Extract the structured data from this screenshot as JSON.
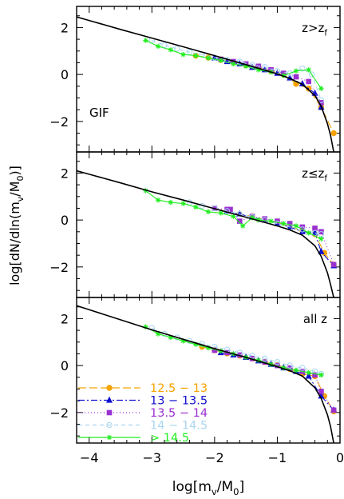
{
  "xlabel": "log[m_v/M_0]",
  "ylabel": "log[dN/dln(m_v/M_0)]",
  "colors": {
    "axis": "#000000",
    "model": "#000000",
    "s1": "#f5a300",
    "s2": "#1010d0",
    "s3": "#9a30d0",
    "s4": "#a9d6f0",
    "s5": "#22ee22"
  },
  "legend": [
    {
      "label": "12.5 − 13",
      "color": "#f5a300",
      "marker": "circle",
      "dash": "10,4"
    },
    {
      "label": "13 − 13.5",
      "color": "#1010d0",
      "marker": "triangle",
      "dash": "8,3,2,3"
    },
    {
      "label": "13.5 − 14",
      "color": "#9a30d0",
      "marker": "square",
      "dash": "1,3"
    },
    {
      "label": "14 − 14.5",
      "color": "#a9d6f0",
      "marker": "circle-open",
      "dash": "5,4"
    },
    {
      "label": "> 14.5",
      "color": "#22ee22",
      "marker": "star",
      "dash": ""
    }
  ],
  "chart_data": [
    {
      "type": "line",
      "panel_label": "z>z_f",
      "extra_label": "GIF",
      "xlim": [
        -4.2,
        0
      ],
      "ylim": [
        -3.3,
        2.9
      ],
      "xticks": [
        -4,
        -3,
        -2,
        -1,
        0
      ],
      "yticks": [
        -2,
        0,
        2
      ],
      "model": {
        "x": [
          -4.2,
          -4.0,
          -3.5,
          -3.0,
          -2.5,
          -2.0,
          -1.5,
          -1.0,
          -0.8,
          -0.6,
          -0.4,
          -0.3,
          -0.2,
          -0.15,
          -0.1,
          -0.07
        ],
        "y": [
          2.45,
          2.3,
          1.92,
          1.55,
          1.18,
          0.8,
          0.42,
          0.02,
          -0.17,
          -0.42,
          -0.9,
          -1.35,
          -2.1,
          -2.6,
          -3.3,
          -3.6
        ]
      },
      "series": [
        {
          "name": "12.5 − 13",
          "x": [
            -2.3,
            -2.1,
            -1.9,
            -1.7,
            -1.5,
            -1.3,
            -1.1,
            -0.9,
            -0.7,
            -0.5,
            -0.3,
            -0.1
          ],
          "y": [
            0.8,
            0.72,
            0.62,
            0.52,
            0.4,
            0.3,
            0.15,
            0.0,
            -0.4,
            -0.6,
            -1.4,
            -2.5
          ]
        },
        {
          "name": "13 − 13.5",
          "x": [
            -2.0,
            -1.8,
            -1.6,
            -1.4,
            -1.2,
            -1.0,
            -0.8,
            -0.6,
            -0.4,
            -0.3
          ],
          "y": [
            0.7,
            0.55,
            0.45,
            0.3,
            0.2,
            0.05,
            -0.15,
            -0.4,
            -0.8,
            -1.4
          ]
        },
        {
          "name": "13.5 − 14",
          "x": [
            -1.9,
            -1.7,
            -1.5,
            -1.3,
            -1.1,
            -0.9,
            -0.7,
            -0.5,
            -0.3
          ],
          "y": [
            0.65,
            0.55,
            0.45,
            0.35,
            0.2,
            0.05,
            -0.1,
            -0.3,
            -1.2
          ]
        },
        {
          "name": "14 − 14.5",
          "x": [
            -3.0,
            -2.8,
            -2.6,
            -2.4,
            -2.2,
            -2.0,
            -1.8,
            -1.6,
            -1.4,
            -1.2,
            -1.0,
            -0.8,
            -0.6,
            -0.45,
            -0.3
          ],
          "y": [
            1.45,
            1.25,
            1.1,
            0.95,
            0.85,
            0.72,
            0.62,
            0.55,
            0.4,
            0.32,
            0.15,
            0.05,
            0.25,
            0.0,
            -1.1
          ]
        },
        {
          "name": "> 14.5",
          "x": [
            -3.1,
            -2.9,
            -2.7,
            -2.5,
            -2.3,
            -2.1,
            -1.9,
            -1.7,
            -1.5,
            -1.3,
            -1.1,
            -0.9,
            -0.7,
            -0.5,
            -0.3
          ],
          "y": [
            1.45,
            1.2,
            1.05,
            0.85,
            0.8,
            0.7,
            0.6,
            0.45,
            0.35,
            0.2,
            0.1,
            -0.05,
            0.15,
            0.2,
            -0.6
          ]
        }
      ]
    },
    {
      "type": "line",
      "panel_label": "z≤z_f",
      "xlim": [
        -4.2,
        0
      ],
      "ylim": [
        -3.3,
        2.9
      ],
      "xticks": [
        -4,
        -3,
        -2,
        -1,
        0
      ],
      "yticks": [
        -2,
        0,
        2
      ],
      "model": {
        "x": [
          -4.2,
          -4.0,
          -3.5,
          -3.0,
          -2.5,
          -2.0,
          -1.5,
          -1.0,
          -0.8,
          -0.6,
          -0.4,
          -0.3,
          -0.2,
          -0.15,
          -0.1,
          -0.07
        ],
        "y": [
          2.1,
          1.95,
          1.58,
          1.2,
          0.85,
          0.48,
          0.12,
          -0.25,
          -0.42,
          -0.65,
          -1.1,
          -1.55,
          -2.25,
          -2.75,
          -3.3,
          -3.6
        ]
      },
      "series": [
        {
          "name": "12.5 − 13",
          "x": [
            -2.0,
            -1.8,
            -1.6,
            -1.4,
            -1.2,
            -1.0,
            -0.8,
            -0.6,
            -0.4,
            -0.25,
            -0.1
          ],
          "y": [
            0.5,
            0.38,
            0.25,
            0.15,
            0.02,
            -0.1,
            -0.3,
            -0.45,
            -0.6,
            -1.4,
            -1.9
          ]
        },
        {
          "name": "13 − 13.5",
          "x": [
            -1.8,
            -1.6,
            -1.4,
            -1.2,
            -1.0,
            -0.8,
            -0.6,
            -0.4,
            -0.3,
            -0.1
          ],
          "y": [
            0.38,
            0.25,
            0.12,
            0.0,
            -0.15,
            -0.3,
            -0.5,
            -0.55,
            -1.35,
            -1.95
          ]
        },
        {
          "name": "13.5 − 14",
          "x": [
            -2.0,
            -1.8,
            -1.75,
            -1.6,
            -1.4,
            -1.2,
            -1.0,
            -0.8,
            -0.6,
            -0.4,
            -0.3,
            -0.1
          ],
          "y": [
            0.5,
            0.45,
            0.45,
            -0.05,
            0.15,
            0.05,
            -0.05,
            -0.15,
            -0.3,
            -0.35,
            -0.5,
            -1.9
          ]
        },
        {
          "name": "14 − 14.5",
          "x": [
            -2.4,
            -2.2,
            -2.0,
            -1.8,
            -1.6,
            -1.4,
            -1.2,
            -1.0,
            -0.8,
            -0.6,
            -0.4,
            -0.3
          ],
          "y": [
            0.75,
            0.6,
            0.5,
            0.38,
            0.25,
            0.12,
            0.0,
            -0.15,
            -0.3,
            -0.4,
            -0.55,
            -0.6
          ]
        },
        {
          "name": "> 14.5",
          "x": [
            -3.1,
            -2.9,
            -2.7,
            -2.5,
            -2.3,
            -2.1,
            -1.9,
            -1.7,
            -1.55,
            -1.4,
            -1.3,
            -1.1,
            -0.9,
            -0.7,
            -0.5,
            -0.3
          ],
          "y": [
            1.25,
            0.85,
            0.75,
            0.7,
            0.55,
            0.35,
            0.3,
            0.15,
            -0.25,
            0.1,
            0.0,
            -0.05,
            -0.15,
            -0.25,
            -0.55,
            -0.8
          ]
        }
      ]
    },
    {
      "type": "line",
      "panel_label": "all  z",
      "xlim": [
        -4.2,
        0
      ],
      "ylim": [
        -3.3,
        2.9
      ],
      "xticks": [
        -4,
        -3,
        -2,
        -1,
        0
      ],
      "yticks": [
        -2,
        0,
        2
      ],
      "model": {
        "x": [
          -4.2,
          -4.0,
          -3.5,
          -3.0,
          -2.5,
          -2.0,
          -1.5,
          -1.0,
          -0.8,
          -0.6,
          -0.4,
          -0.3,
          -0.2,
          -0.15,
          -0.1,
          -0.07
        ],
        "y": [
          2.55,
          2.38,
          1.95,
          1.52,
          1.12,
          0.72,
          0.35,
          -0.05,
          -0.22,
          -0.45,
          -0.95,
          -1.4,
          -2.1,
          -2.6,
          -3.3,
          -3.6
        ]
      },
      "series": [
        {
          "name": "12.5 − 13",
          "x": [
            -2.2,
            -2.0,
            -1.8,
            -1.6,
            -1.4,
            -1.2,
            -1.0,
            -0.8,
            -0.6,
            -0.4,
            -0.25,
            -0.1
          ],
          "y": [
            0.8,
            0.65,
            0.52,
            0.42,
            0.3,
            0.15,
            0.02,
            -0.15,
            -0.35,
            -0.45,
            -1.3,
            -1.95
          ]
        },
        {
          "name": "13 − 13.5",
          "x": [
            -1.9,
            -1.7,
            -1.5,
            -1.3,
            -1.1,
            -0.9,
            -0.7,
            -0.5,
            -0.3,
            -0.1
          ],
          "y": [
            0.55,
            0.45,
            0.35,
            0.2,
            0.05,
            -0.1,
            -0.25,
            -0.45,
            -1.3,
            -1.9
          ]
        },
        {
          "name": "13.5 − 14",
          "x": [
            -2.0,
            -1.8,
            -1.6,
            -1.4,
            -1.2,
            -1.0,
            -0.8,
            -0.6,
            -0.4,
            -0.3,
            -0.1
          ],
          "y": [
            0.65,
            0.55,
            0.45,
            0.3,
            0.15,
            0.0,
            -0.1,
            -0.25,
            -0.4,
            -1.1,
            -1.9
          ]
        },
        {
          "name": "14 − 14.5",
          "x": [
            -3.0,
            -2.8,
            -2.6,
            -2.4,
            -2.2,
            -2.0,
            -1.8,
            -1.6,
            -1.4,
            -1.2,
            -1.0,
            -0.8,
            -0.6,
            -0.4,
            -0.3
          ],
          "y": [
            1.6,
            1.35,
            1.2,
            1.05,
            0.92,
            0.8,
            0.68,
            0.55,
            0.42,
            0.3,
            0.15,
            0.0,
            -0.1,
            -0.25,
            -0.35
          ]
        },
        {
          "name": "> 14.5",
          "x": [
            -3.1,
            -2.9,
            -2.7,
            -2.5,
            -2.3,
            -2.1,
            -1.9,
            -1.7,
            -1.5,
            -1.3,
            -1.1,
            -0.9,
            -0.7,
            -0.5,
            -0.3
          ],
          "y": [
            1.65,
            1.35,
            1.2,
            1.05,
            0.9,
            0.75,
            0.62,
            0.5,
            0.35,
            0.22,
            0.05,
            -0.1,
            -0.2,
            -0.3,
            -0.4
          ]
        }
      ]
    }
  ]
}
